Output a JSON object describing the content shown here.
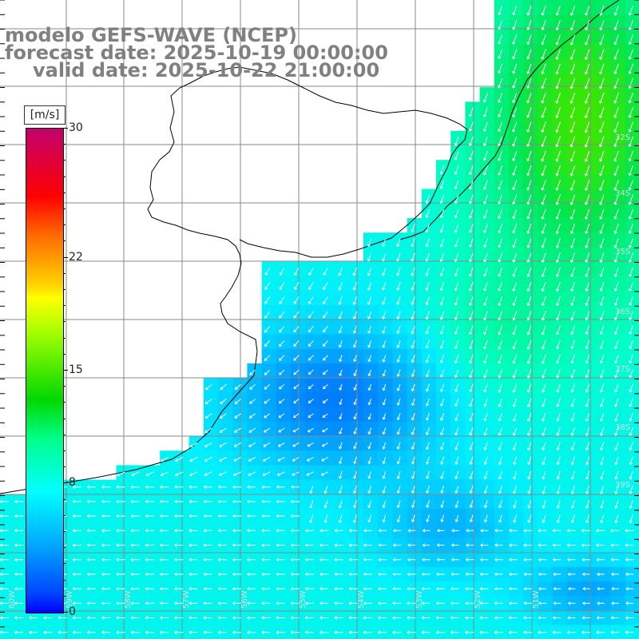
{
  "title": {
    "model": "modelo GEFS-WAVE (NCEP)",
    "forecast": "forecast date: 2025-10-19 00:00:00",
    "valid": "valid date: 2025-10-22 21:00:00"
  },
  "colorbar": {
    "units": "[m/s]",
    "ticks": [
      {
        "label": "30",
        "value": 30
      },
      {
        "label": "22",
        "value": 22
      },
      {
        "label": "15",
        "value": 15
      },
      {
        "label": "8",
        "value": 8
      },
      {
        "label": "0",
        "value": 0
      }
    ]
  },
  "map": {
    "lat_labels": [
      "32S",
      "34S",
      "35S",
      "36S",
      "37S",
      "38S",
      "39S"
    ],
    "lon_labels": [
      "60W",
      "59W",
      "58W",
      "57W",
      "56W",
      "55W",
      "54W",
      "53W",
      "52W",
      "51W"
    ],
    "colors": {
      "land": "#ffffff",
      "coast": "#000000",
      "grid": "#888888",
      "arrow": "#ffffff"
    }
  }
}
